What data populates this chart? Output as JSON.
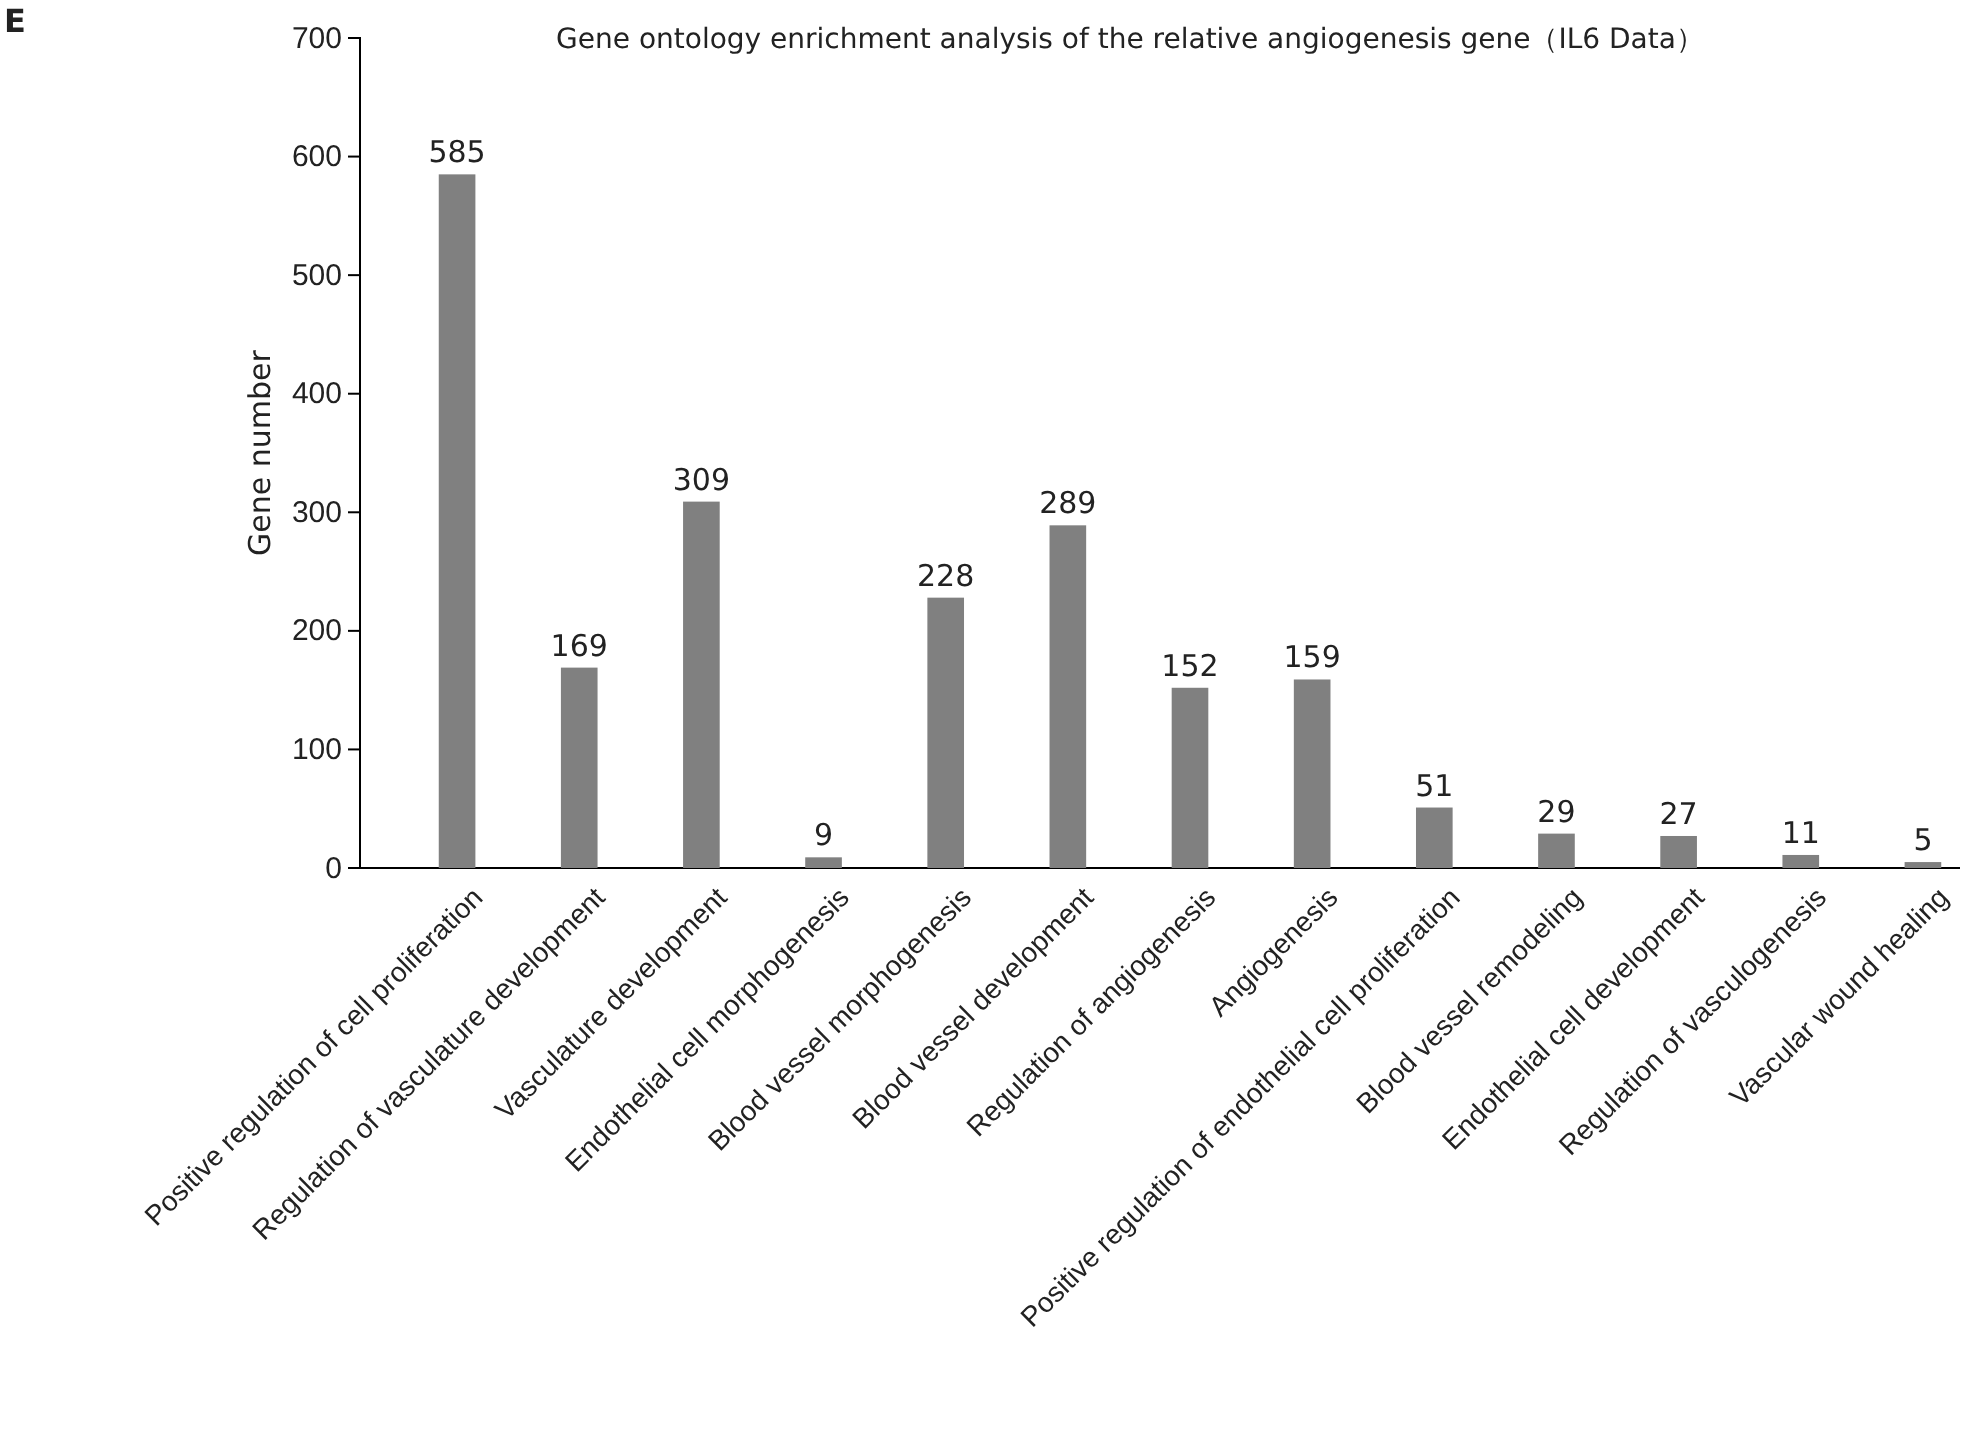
{
  "chart_data": {
    "type": "bar",
    "title": "Gene ontology enrichment analysis of the relative angiogenesis gene（IL6 Data）",
    "ylabel": "Gene number",
    "categories": [
      "Positive regulation of cell proliferation",
      "Regulation of vasculature development",
      "Vasculature development",
      "Endothelial cell morphogenesis",
      "Blood vessel morphogenesis",
      "Blood vessel development",
      "Regulation of angiogenesis",
      "Angiogenesis",
      "Positive regulation of endothelial cell proliferation",
      "Blood vessel remodeling",
      "Endothelial cell development",
      "Regulation of vasculogenesis",
      "Vascular wound healing"
    ],
    "values": [
      585,
      169,
      309,
      9,
      228,
      289,
      152,
      159,
      51,
      29,
      27,
      11,
      5
    ],
    "color": "#808080",
    "ylim": [
      0,
      700
    ],
    "yticks": [
      0,
      100,
      200,
      300,
      400,
      500,
      600,
      700
    ],
    "data_labels": true,
    "grid": false,
    "annotations": [
      "E"
    ]
  }
}
